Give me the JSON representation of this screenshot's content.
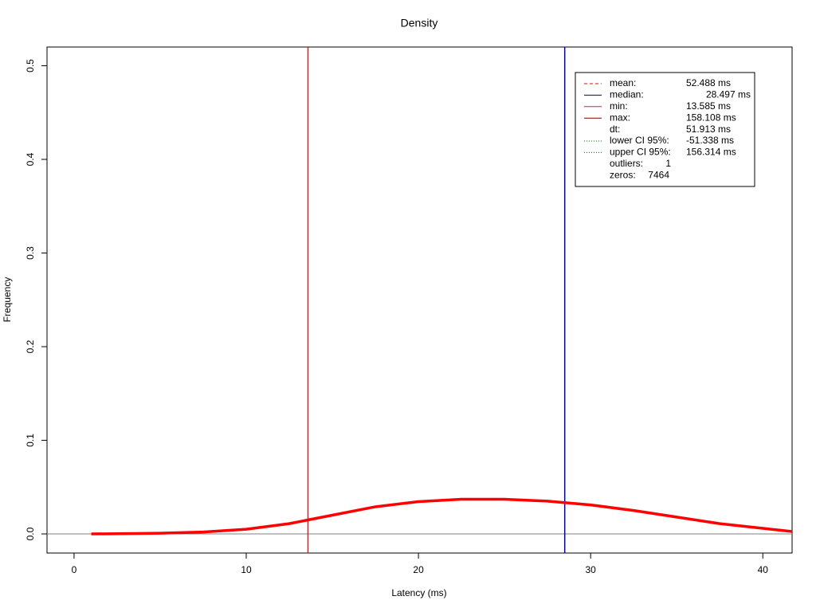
{
  "chart_data": {
    "type": "line",
    "title": "Density",
    "x_label": "Latency (ms)",
    "y_label": "Frequency",
    "x": [
      1,
      2.5,
      5,
      7.5,
      10,
      12.5,
      15,
      17.5,
      20,
      22.5,
      25,
      27.5,
      30,
      32.5,
      35,
      37.5,
      40,
      41.7
    ],
    "series": [
      {
        "color": "#ff0000",
        "values": [
          0,
          0.0002,
          0.0008,
          0.002,
          0.005,
          0.011,
          0.02,
          0.029,
          0.0345,
          0.037,
          0.037,
          0.035,
          0.031,
          0.025,
          0.018,
          0.011,
          0.006,
          0.0026
        ]
      }
    ],
    "xlim": [
      -1.57,
      41.7
    ],
    "ylim": [
      -0.0204,
      0.52
    ],
    "xticks": [
      0,
      10,
      20,
      30,
      40
    ],
    "yticks": [
      {
        "value": 0,
        "label": "0.0"
      },
      {
        "value": 0.1,
        "label": "0.1"
      },
      {
        "value": 0.2,
        "label": "0.2"
      },
      {
        "value": 0.3,
        "label": "0.3"
      },
      {
        "value": 0.4,
        "label": "0.4"
      },
      {
        "value": 0.5,
        "label": "0.5"
      }
    ],
    "hline": {
      "y": 0,
      "color": "#808080"
    },
    "vlines": [
      {
        "x": 13.585,
        "color": "#cd2626"
      },
      {
        "x": 28.497,
        "color": "#0000cd"
      }
    ],
    "legend": [
      {
        "label": "mean:",
        "value": "52.488 ms",
        "color": "#ff0000",
        "dash": "dashed"
      },
      {
        "label": "median:",
        "value": "28.497 ms",
        "color": "#00008b",
        "dash": "solid"
      },
      {
        "label": "min:",
        "value": "13.585 ms",
        "color": "#cd2626",
        "dash": "solid"
      },
      {
        "label": "max:",
        "value": "158.108 ms",
        "color": "#8b0000",
        "dash": "solid"
      },
      {
        "label": "dt:",
        "value": "51.913 ms"
      },
      {
        "label": "lower CI 95%:",
        "value": "-51.338 ms",
        "color": "#006400",
        "dash": "dotted"
      },
      {
        "label": "upper CI 95%:",
        "value": "156.314 ms",
        "color": "#006400",
        "dash": "dotted"
      },
      {
        "label": "outliers:",
        "value": "1"
      },
      {
        "label": "zeros:",
        "value": "7464"
      }
    ]
  }
}
